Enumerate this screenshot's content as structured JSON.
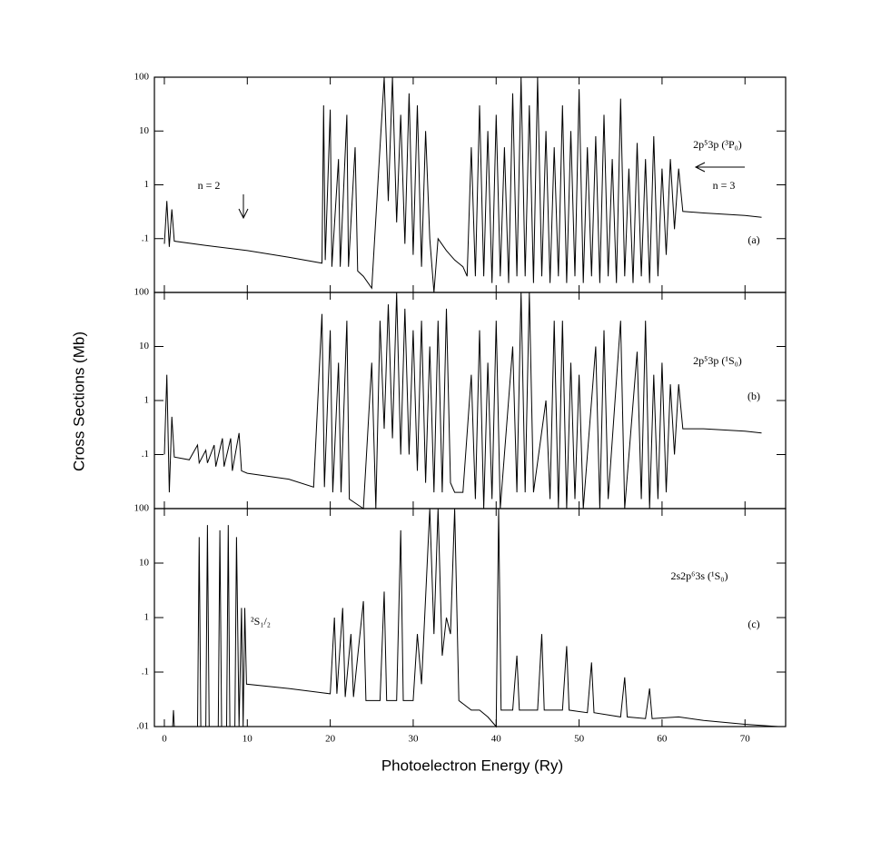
{
  "chart_data": [
    {
      "type": "line",
      "yscale": "log",
      "color": "#000000",
      "xlim": [
        -1.2,
        74.9
      ],
      "ylim": [
        0.01,
        100
      ],
      "yticks": [
        {
          "value": 100,
          "label": "100"
        },
        10,
        1,
        {
          "value": 0.1,
          "label": ".1"
        }
      ],
      "annotations": [
        "2p⁵3p (³P₀)",
        "n = 2",
        "n = 3",
        "(a)"
      ],
      "x": [
        0,
        0.3,
        0.6,
        0.9,
        1.2,
        5,
        10,
        15,
        19,
        19.2,
        19.4,
        20,
        20.2,
        21,
        21.2,
        22,
        22.2,
        23,
        23.3,
        24,
        25,
        26,
        26.5,
        27,
        27.5,
        28,
        28.5,
        29,
        29.5,
        30,
        30.5,
        31,
        31.5,
        32,
        32.5,
        33,
        34,
        35,
        36,
        36.5,
        37,
        37.5,
        38,
        38.5,
        39,
        39.5,
        40,
        40.5,
        41,
        41.5,
        42,
        42.5,
        43,
        43.5,
        44,
        44.5,
        45,
        45.5,
        46,
        46.5,
        47,
        47.5,
        48,
        48.5,
        49,
        49.5,
        50,
        50.5,
        51,
        51.5,
        52,
        52.5,
        53,
        53.5,
        54,
        54.5,
        55,
        55.5,
        56,
        56.5,
        57,
        57.5,
        58,
        58.5,
        59,
        59.5,
        60,
        60.5,
        61,
        61.5,
        62,
        62.5,
        65,
        70,
        72
      ],
      "values": [
        0.08,
        0.5,
        0.07,
        0.35,
        0.09,
        0.075,
        0.06,
        0.045,
        0.035,
        30,
        0.04,
        25,
        0.03,
        3,
        0.03,
        20,
        0.03,
        5,
        0.025,
        0.02,
        0.012,
        5,
        100,
        0.5,
        100,
        0.2,
        20,
        0.08,
        50,
        0.05,
        30,
        0.03,
        10,
        0.1,
        0.01,
        0.1,
        0.06,
        0.04,
        0.03,
        0.02,
        5,
        0.02,
        30,
        0.02,
        10,
        0.015,
        20,
        0.02,
        5,
        0.015,
        50,
        0.02,
        100,
        0.02,
        30,
        0.015,
        100,
        0.02,
        10,
        0.015,
        5,
        0.02,
        30,
        0.015,
        10,
        0.02,
        60,
        0.015,
        5,
        0.02,
        8,
        0.015,
        20,
        0.02,
        3,
        0.015,
        40,
        0.02,
        2,
        0.015,
        6,
        0.02,
        3,
        0.015,
        8,
        0.02,
        2,
        0.05,
        3,
        0.15,
        2,
        0.32,
        0.3,
        0.27,
        0.25
      ]
    },
    {
      "type": "line",
      "yscale": "log",
      "color": "#000000",
      "xlim": [
        -1.2,
        74.9
      ],
      "ylim": [
        0.01,
        100
      ],
      "yticks": [
        {
          "value": 100,
          "label": "100"
        },
        10,
        1,
        {
          "value": 0.1,
          "label": ".1"
        }
      ],
      "ylabel": "Cross Sections (Mb)",
      "annotations": [
        "2p⁵3p (¹S₀)",
        "(b)"
      ],
      "x": [
        0,
        0.3,
        0.6,
        0.9,
        1.2,
        3,
        4,
        4.2,
        5,
        5.2,
        6,
        6.2,
        7,
        7.2,
        8,
        8.2,
        9,
        9.3,
        10,
        15,
        18,
        19,
        19.3,
        20,
        20.3,
        21,
        21.3,
        22,
        22.3,
        24,
        25,
        25.5,
        26,
        26.5,
        27,
        27.5,
        28,
        28.5,
        29,
        29.5,
        30,
        30.5,
        31,
        31.5,
        32,
        32.5,
        33,
        33.5,
        34,
        34.5,
        35,
        36,
        37,
        37.5,
        38,
        38.5,
        39,
        39.5,
        40,
        40.5,
        42,
        42.5,
        43,
        43.5,
        44,
        44.5,
        46,
        46.5,
        47,
        47.5,
        48,
        48.5,
        49,
        49.5,
        50,
        50.5,
        52,
        52.5,
        53,
        53.5,
        55,
        55.5,
        57,
        57.5,
        58,
        58.5,
        59,
        59.5,
        60,
        60.5,
        61,
        61.5,
        62,
        62.5,
        65,
        70,
        72
      ],
      "values": [
        0.1,
        3,
        0.02,
        0.5,
        0.09,
        0.08,
        0.15,
        0.07,
        0.12,
        0.07,
        0.15,
        0.06,
        0.2,
        0.06,
        0.2,
        0.05,
        0.25,
        0.05,
        0.045,
        0.035,
        0.025,
        40,
        0.025,
        20,
        0.02,
        5,
        0.02,
        30,
        0.015,
        0.01,
        5,
        0.01,
        30,
        0.3,
        60,
        0.2,
        100,
        0.1,
        50,
        0.1,
        20,
        0.05,
        30,
        0.03,
        10,
        0.02,
        30,
        0.02,
        50,
        0.03,
        0.02,
        0.02,
        3,
        0.015,
        20,
        0.01,
        5,
        0.015,
        30,
        0.01,
        10,
        0.02,
        100,
        0.02,
        100,
        0.02,
        1,
        0.015,
        30,
        0.01,
        30,
        0.01,
        5,
        0.015,
        3,
        0.01,
        10,
        0.01,
        20,
        0.015,
        30,
        0.01,
        8,
        0.015,
        30,
        0.01,
        3,
        0.015,
        5,
        0.02,
        2,
        0.1,
        2,
        0.3,
        0.3,
        0.27,
        0.25
      ]
    },
    {
      "type": "line",
      "yscale": "log",
      "color": "#000000",
      "xlim": [
        -1.2,
        74.9
      ],
      "ylim": [
        0.01,
        100
      ],
      "yticks": [
        {
          "value": 100,
          "label": "100"
        },
        10,
        1,
        {
          "value": 0.1,
          "label": ".1"
        },
        {
          "value": 0.01,
          "label": ".01"
        }
      ],
      "xticks": [
        0,
        10,
        20,
        30,
        40,
        50,
        60,
        70
      ],
      "xlabel": "Photoelectron Energy (Ry)",
      "annotations": [
        "2s2p⁶3s (¹S₀)",
        "(c)",
        "²S₁/₂"
      ],
      "x": [
        1,
        1.1,
        1.2,
        4,
        4.2,
        4.4,
        5,
        5.2,
        5.4,
        6.5,
        6.7,
        6.9,
        7.5,
        7.7,
        7.9,
        8.5,
        8.7,
        9,
        9.3,
        9.5,
        9.7,
        9.9,
        15,
        20,
        20.5,
        20.8,
        21.5,
        21.8,
        22.5,
        22.8,
        24,
        24.3,
        26,
        26.5,
        26.8,
        28,
        28.5,
        28.8,
        30,
        30.5,
        31,
        32,
        32.5,
        33,
        33.5,
        34,
        34.5,
        35,
        35.5,
        37,
        38,
        39,
        40,
        40.3,
        40.6,
        42,
        42.5,
        42.8,
        45,
        45.5,
        45.8,
        48,
        48.5,
        48.8,
        51,
        51.5,
        51.8,
        55,
        55.5,
        55.8,
        58,
        58.5,
        58.8,
        62,
        65,
        70,
        74
      ],
      "values": [
        0.01,
        0.02,
        0.01,
        0.01,
        30,
        0.01,
        0.01,
        50,
        0.01,
        0.01,
        40,
        0.01,
        0.01,
        50,
        0.01,
        0.01,
        30,
        0.01,
        1.5,
        0.01,
        1.5,
        0.06,
        0.05,
        0.04,
        1,
        0.04,
        1.5,
        0.035,
        0.5,
        0.035,
        2,
        0.03,
        0.03,
        3,
        0.03,
        0.03,
        40,
        0.03,
        0.03,
        0.5,
        0.06,
        100,
        0.5,
        100,
        0.2,
        1,
        0.5,
        100,
        0.03,
        0.02,
        0.02,
        0.015,
        0.01,
        100,
        0.02,
        0.02,
        0.2,
        0.02,
        0.02,
        0.5,
        0.02,
        0.02,
        0.3,
        0.02,
        0.018,
        0.15,
        0.018,
        0.015,
        0.08,
        0.015,
        0.014,
        0.05,
        0.014,
        0.015,
        0.013,
        0.011,
        0.01
      ]
    }
  ]
}
